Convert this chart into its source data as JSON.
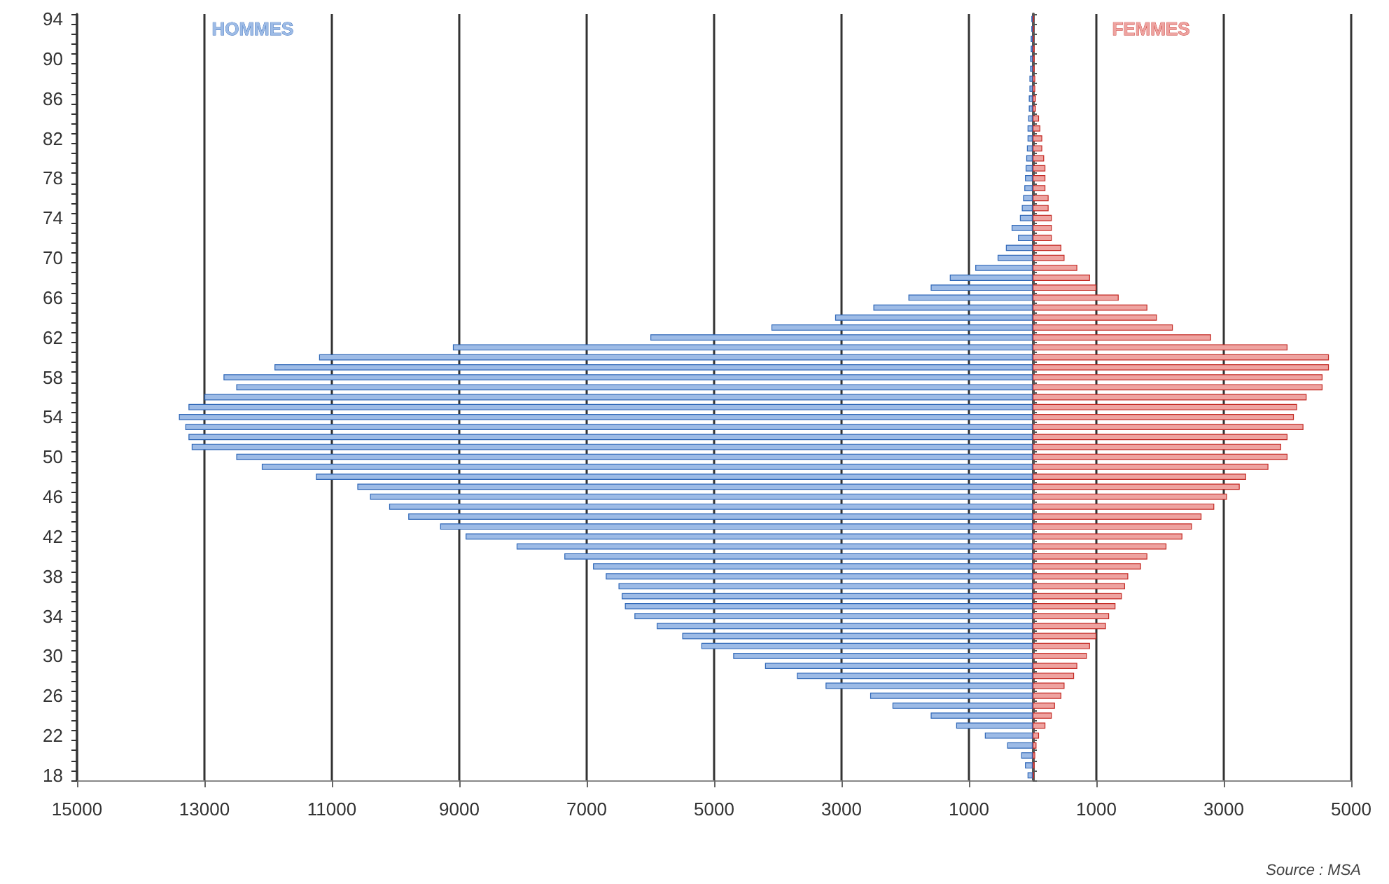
{
  "chart_data": {
    "type": "bar",
    "orientation": "horizontal",
    "stacked": true,
    "legend": false,
    "grid": "x",
    "categories": [
      "94",
      null,
      null,
      null,
      "90",
      null,
      null,
      null,
      "86",
      null,
      null,
      null,
      "82",
      null,
      null,
      null,
      "78",
      null,
      null,
      null,
      "74",
      null,
      null,
      null,
      "70",
      null,
      null,
      null,
      "66",
      null,
      null,
      null,
      "62",
      null,
      null,
      null,
      "58",
      null,
      null,
      null,
      "54",
      null,
      null,
      null,
      "50",
      null,
      null,
      null,
      "46",
      null,
      null,
      null,
      "42",
      null,
      null,
      null,
      "38",
      null,
      null,
      null,
      "34",
      null,
      null,
      null,
      "30",
      null,
      null,
      null,
      "26",
      null,
      null,
      null,
      "22",
      null,
      null,
      null,
      "18"
    ],
    "series": [
      {
        "name": "HOMMES",
        "color": "#9dbbe6",
        "values": [
          -20,
          -20,
          -30,
          -30,
          -40,
          -40,
          -50,
          -50,
          -60,
          -60,
          -70,
          -80,
          -80,
          -90,
          -100,
          -110,
          -120,
          -130,
          -150,
          -170,
          -200,
          -330,
          -230,
          -420,
          -550,
          -900,
          -1300,
          -1600,
          -1950,
          -2500,
          -3100,
          -4100,
          -6000,
          -9100,
          -11200,
          -11900,
          -12700,
          -12500,
          -13000,
          -13250,
          -13400,
          -13300,
          -13250,
          -13200,
          -12500,
          -12100,
          -11250,
          -10600,
          -10400,
          -10100,
          -9800,
          -9300,
          -8900,
          -8100,
          -7350,
          -6900,
          -6700,
          -6500,
          -6450,
          -6400,
          -6250,
          -5900,
          -5500,
          -5200,
          -4700,
          -4200,
          -3700,
          -3250,
          -2550,
          -2200,
          -1600,
          -1200,
          -750,
          -400,
          -180,
          -120,
          -80
        ]
      },
      {
        "name": "FEMMES",
        "color": "#eea3a0",
        "values": [
          20,
          20,
          20,
          30,
          30,
          30,
          40,
          40,
          50,
          50,
          100,
          120,
          150,
          150,
          180,
          200,
          200,
          200,
          250,
          250,
          300,
          300,
          300,
          450,
          500,
          700,
          900,
          1000,
          1350,
          1800,
          1950,
          2200,
          2800,
          4000,
          4650,
          4650,
          4550,
          4550,
          4300,
          4150,
          4100,
          4250,
          4000,
          3900,
          4000,
          3700,
          3350,
          3250,
          3050,
          2850,
          2650,
          2500,
          2350,
          2100,
          1800,
          1700,
          1500,
          1450,
          1400,
          1300,
          1200,
          1150,
          1000,
          900,
          850,
          700,
          650,
          500,
          450,
          350,
          300,
          200,
          100,
          60,
          40,
          30,
          20
        ]
      }
    ],
    "xlim": [
      -15000,
      5000
    ],
    "xticks": [
      {
        "value": -15000,
        "label": "15000"
      },
      {
        "value": -13000,
        "label": "13000"
      },
      {
        "value": -11000,
        "label": "11000"
      },
      {
        "value": -9000,
        "label": "9000"
      },
      {
        "value": -7000,
        "label": "7000"
      },
      {
        "value": -5000,
        "label": "5000"
      },
      {
        "value": -3000,
        "label": "3000"
      },
      {
        "value": -1000,
        "label": "1000"
      },
      {
        "value": 1000,
        "label": "1000"
      },
      {
        "value": 3000,
        "label": "3000"
      },
      {
        "value": 5000,
        "label": "5000"
      }
    ],
    "annotations": [
      "Source : MSA"
    ]
  }
}
